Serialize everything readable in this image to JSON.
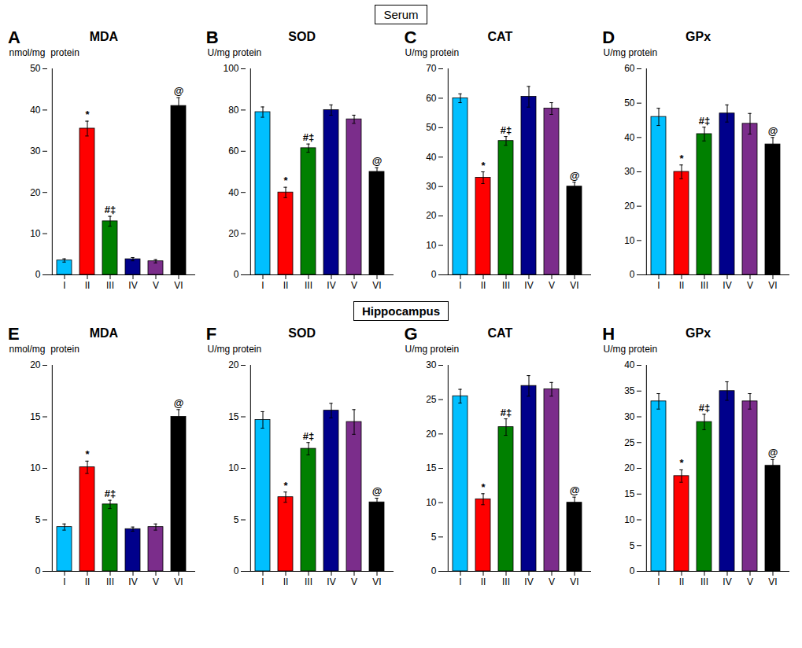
{
  "chart_data": [
    {
      "type": "bar",
      "section": "Serum",
      "panel_label": "A",
      "title": "MDA",
      "ylabel": "nmol/mg  protein",
      "categories": [
        "I",
        "II",
        "III",
        "IV",
        "V",
        "VI"
      ],
      "values": [
        3.5,
        35.5,
        13.0,
        3.8,
        3.3,
        41.0
      ],
      "errors": [
        0.4,
        1.8,
        1.2,
        0.4,
        0.4,
        2.0
      ],
      "annotations": [
        null,
        "*",
        "#‡",
        null,
        null,
        "@"
      ],
      "colors": [
        "#00BFFF",
        "#FF0000",
        "#008000",
        "#00008B",
        "#7B2D8B",
        "#000000"
      ],
      "ylim": [
        0,
        50
      ],
      "yticks": [
        0,
        10,
        20,
        30,
        40,
        50
      ]
    },
    {
      "type": "bar",
      "section": "Serum",
      "panel_label": "B",
      "title": "SOD",
      "ylabel": "U/mg protein",
      "categories": [
        "I",
        "II",
        "III",
        "IV",
        "V",
        "VI"
      ],
      "values": [
        79.0,
        40.0,
        61.5,
        80.0,
        75.5,
        50.0
      ],
      "errors": [
        2.5,
        2.5,
        2.0,
        2.5,
        2.0,
        2.0
      ],
      "annotations": [
        null,
        "*",
        "#‡",
        null,
        null,
        "@"
      ],
      "colors": [
        "#00BFFF",
        "#FF0000",
        "#008000",
        "#00008B",
        "#7B2D8B",
        "#000000"
      ],
      "ylim": [
        0,
        100
      ],
      "yticks": [
        0,
        20,
        40,
        60,
        80,
        100
      ]
    },
    {
      "type": "bar",
      "section": "Serum",
      "panel_label": "C",
      "title": "CAT",
      "ylabel": "U/mg protein",
      "categories": [
        "I",
        "II",
        "III",
        "IV",
        "V",
        "VI"
      ],
      "values": [
        60.0,
        33.0,
        45.5,
        60.5,
        56.5,
        30.0
      ],
      "errors": [
        1.5,
        2.0,
        1.5,
        3.5,
        2.0,
        1.5
      ],
      "annotations": [
        null,
        "*",
        "#‡",
        null,
        null,
        "@"
      ],
      "colors": [
        "#00BFFF",
        "#FF0000",
        "#008000",
        "#00008B",
        "#7B2D8B",
        "#000000"
      ],
      "ylim": [
        0,
        70
      ],
      "yticks": [
        0,
        10,
        20,
        30,
        40,
        50,
        60,
        70
      ]
    },
    {
      "type": "bar",
      "section": "Serum",
      "panel_label": "D",
      "title": "GPx",
      "ylabel": "U/mg protein",
      "categories": [
        "I",
        "II",
        "III",
        "IV",
        "V",
        "VI"
      ],
      "values": [
        46.0,
        30.0,
        41.0,
        47.0,
        44.0,
        38.0
      ],
      "errors": [
        2.5,
        2.0,
        2.0,
        2.5,
        3.0,
        2.0
      ],
      "annotations": [
        null,
        "*",
        "#‡",
        null,
        null,
        "@"
      ],
      "colors": [
        "#00BFFF",
        "#FF0000",
        "#008000",
        "#00008B",
        "#7B2D8B",
        "#000000"
      ],
      "ylim": [
        0,
        60
      ],
      "yticks": [
        0,
        10,
        20,
        30,
        40,
        50,
        60
      ]
    },
    {
      "type": "bar",
      "section": "Hippocampus",
      "panel_label": "E",
      "title": "MDA",
      "ylabel": "nmol/mg  protein",
      "categories": [
        "I",
        "II",
        "III",
        "IV",
        "V",
        "VI"
      ],
      "values": [
        4.3,
        10.1,
        6.5,
        4.1,
        4.3,
        15.0
      ],
      "errors": [
        0.3,
        0.6,
        0.4,
        0.2,
        0.3,
        0.7
      ],
      "annotations": [
        null,
        "*",
        "#‡",
        null,
        null,
        "@"
      ],
      "colors": [
        "#00BFFF",
        "#FF0000",
        "#008000",
        "#00008B",
        "#7B2D8B",
        "#000000"
      ],
      "ylim": [
        0,
        20
      ],
      "yticks": [
        0,
        5,
        10,
        15,
        20
      ]
    },
    {
      "type": "bar",
      "section": "Hippocampus",
      "panel_label": "F",
      "title": "SOD",
      "ylabel": "U/mg protein",
      "categories": [
        "I",
        "II",
        "III",
        "IV",
        "V",
        "VI"
      ],
      "values": [
        14.7,
        7.2,
        11.9,
        15.6,
        14.5,
        6.7
      ],
      "errors": [
        0.8,
        0.5,
        0.6,
        0.7,
        1.2,
        0.4
      ],
      "annotations": [
        null,
        "*",
        "#‡",
        null,
        null,
        "@"
      ],
      "colors": [
        "#00BFFF",
        "#FF0000",
        "#008000",
        "#00008B",
        "#7B2D8B",
        "#000000"
      ],
      "ylim": [
        0,
        20
      ],
      "yticks": [
        0,
        5,
        10,
        15,
        20
      ]
    },
    {
      "type": "bar",
      "section": "Hippocampus",
      "panel_label": "G",
      "title": "CAT",
      "ylabel": "U/mg protein",
      "categories": [
        "I",
        "II",
        "III",
        "IV",
        "V",
        "VI"
      ],
      "values": [
        25.5,
        10.5,
        21.0,
        27.0,
        26.5,
        10.0
      ],
      "errors": [
        1.0,
        0.8,
        1.2,
        1.5,
        1.0,
        0.8
      ],
      "annotations": [
        null,
        "*",
        "#‡",
        null,
        null,
        "@"
      ],
      "colors": [
        "#00BFFF",
        "#FF0000",
        "#008000",
        "#00008B",
        "#7B2D8B",
        "#000000"
      ],
      "ylim": [
        0,
        30
      ],
      "yticks": [
        0,
        5,
        10,
        15,
        20,
        25,
        30
      ]
    },
    {
      "type": "bar",
      "section": "Hippocampus",
      "panel_label": "H",
      "title": "GPx",
      "ylabel": "U/mg protein",
      "categories": [
        "I",
        "II",
        "III",
        "IV",
        "V",
        "VI"
      ],
      "values": [
        33.0,
        18.5,
        29.0,
        35.0,
        33.0,
        20.5
      ],
      "errors": [
        1.5,
        1.2,
        1.5,
        1.8,
        1.5,
        1.2
      ],
      "annotations": [
        null,
        "*",
        "#‡",
        null,
        null,
        "@"
      ],
      "colors": [
        "#00BFFF",
        "#FF0000",
        "#008000",
        "#00008B",
        "#7B2D8B",
        "#000000"
      ],
      "ylim": [
        0,
        40
      ],
      "yticks": [
        0,
        5,
        10,
        15,
        20,
        25,
        30,
        35,
        40
      ]
    }
  ]
}
